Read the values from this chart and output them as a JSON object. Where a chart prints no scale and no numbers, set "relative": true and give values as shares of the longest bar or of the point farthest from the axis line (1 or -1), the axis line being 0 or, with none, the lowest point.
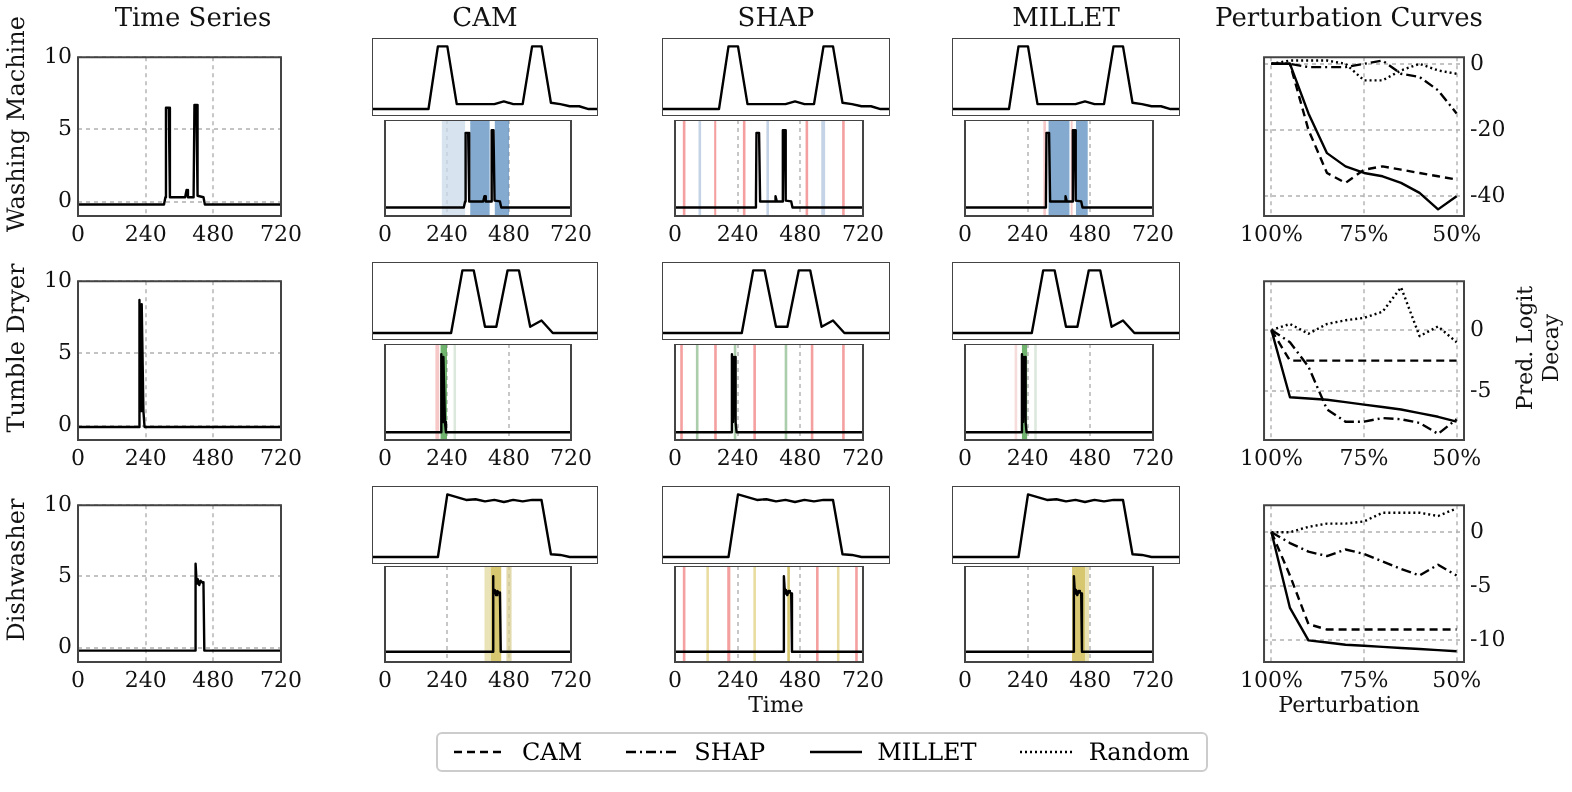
{
  "chart_data": [
    {
      "type": "line",
      "title": "Time Series",
      "ylabel": "Washing Machine",
      "x": [
        0,
        305,
        310,
        312,
        322,
        326,
        380,
        385,
        390,
        410,
        413,
        420,
        424,
        445,
        450,
        720
      ],
      "values": [
        -0.2,
        -0.2,
        0.3,
        6.5,
        6.5,
        0.3,
        0.3,
        0.8,
        0.3,
        0.3,
        6.7,
        6.7,
        0.4,
        0.3,
        -0.2,
        -0.2
      ],
      "color": "#000000",
      "xlim": [
        0,
        720
      ],
      "xticks": [
        0,
        240,
        480,
        720
      ],
      "ylim": [
        -1,
        10
      ],
      "yticks": [
        0,
        5,
        10
      ],
      "grid": true
    },
    {
      "type": "line",
      "title": "CAM",
      "relative": true,
      "categories": [
        null,
        null,
        null,
        null,
        null,
        null,
        null,
        null,
        null,
        null,
        null,
        null,
        null,
        null,
        null,
        null,
        null,
        null,
        null,
        null,
        null,
        null,
        null,
        null,
        null
      ],
      "values": [
        0.1,
        0.1,
        0.1,
        0.1,
        0.1,
        0.1,
        0.1,
        1,
        1,
        0.17,
        0.17,
        0.17,
        0.17,
        0.17,
        0.21,
        0.17,
        0.17,
        1,
        1,
        0.19,
        0.17,
        0.14,
        0.14,
        0.1,
        0.1
      ],
      "color": "#000000",
      "tick_labels": false
    },
    {
      "type": "line",
      "relative": true,
      "x": [
        0,
        305,
        310,
        312,
        322,
        326,
        380,
        385,
        390,
        410,
        413,
        420,
        424,
        445,
        450,
        720
      ],
      "values": [
        0.1,
        0.1,
        0.17,
        0.97,
        0.97,
        0.17,
        0.17,
        0.23,
        0.17,
        0.17,
        1,
        1,
        0.18,
        0.17,
        0.1,
        0.1
      ],
      "color": "#000000",
      "xlim": [
        0,
        720
      ],
      "xticks": [
        0,
        240,
        480,
        720
      ],
      "grid": "x",
      "tick_labels": "x",
      "bands": [
        {
          "axis": "x",
          "from": 220,
          "to": 310,
          "color": "#c9d9e8"
        },
        {
          "axis": "x",
          "from": 330,
          "to": 405,
          "color": "#5b8fbf"
        },
        {
          "axis": "x",
          "from": 425,
          "to": 480,
          "color": "#5b8fbf"
        }
      ]
    },
    {
      "type": "line",
      "title": "SHAP",
      "relative": true,
      "categories": [
        null,
        null,
        null,
        null,
        null,
        null,
        null,
        null,
        null,
        null,
        null,
        null,
        null,
        null,
        null,
        null,
        null,
        null,
        null,
        null,
        null,
        null,
        null,
        null,
        null
      ],
      "values": [
        0.1,
        0.1,
        0.1,
        0.1,
        0.1,
        0.1,
        0.1,
        1,
        1,
        0.17,
        0.17,
        0.17,
        0.17,
        0.17,
        0.21,
        0.17,
        0.17,
        1,
        1,
        0.19,
        0.17,
        0.14,
        0.14,
        0.1,
        0.1
      ],
      "color": "#000000",
      "tick_labels": false
    },
    {
      "type": "line",
      "relative": true,
      "x": [
        0,
        305,
        310,
        312,
        322,
        326,
        380,
        385,
        390,
        410,
        413,
        420,
        424,
        445,
        450,
        720
      ],
      "values": [
        0.1,
        0.1,
        0.17,
        0.97,
        0.97,
        0.17,
        0.17,
        0.23,
        0.17,
        0.17,
        1,
        1,
        0.18,
        0.17,
        0.1,
        0.1
      ],
      "color": "#000000",
      "xlim": [
        0,
        720
      ],
      "xticks": [
        0,
        240,
        480,
        720
      ],
      "grid": "x",
      "tick_labels": "x",
      "bands": [
        {
          "axis": "x",
          "from": 30,
          "to": 40,
          "color": "#f08080"
        },
        {
          "axis": "x",
          "from": 90,
          "to": 100,
          "color": "#b0c4de"
        },
        {
          "axis": "x",
          "from": 150,
          "to": 158,
          "color": "#f08080"
        },
        {
          "axis": "x",
          "from": 260,
          "to": 270,
          "color": "#f08080"
        },
        {
          "axis": "x",
          "from": 350,
          "to": 360,
          "color": "#b0c4de"
        },
        {
          "axis": "x",
          "from": 500,
          "to": 510,
          "color": "#f08080"
        },
        {
          "axis": "x",
          "from": 560,
          "to": 575,
          "color": "#b0c4de"
        },
        {
          "axis": "x",
          "from": 640,
          "to": 650,
          "color": "#f08080"
        }
      ]
    },
    {
      "type": "line",
      "title": "MILLET",
      "relative": true,
      "categories": [
        null,
        null,
        null,
        null,
        null,
        null,
        null,
        null,
        null,
        null,
        null,
        null,
        null,
        null,
        null,
        null,
        null,
        null,
        null,
        null,
        null,
        null,
        null,
        null,
        null
      ],
      "values": [
        0.1,
        0.1,
        0.1,
        0.1,
        0.1,
        0.1,
        0.1,
        1,
        1,
        0.17,
        0.17,
        0.17,
        0.17,
        0.17,
        0.21,
        0.17,
        0.17,
        1,
        1,
        0.19,
        0.17,
        0.14,
        0.14,
        0.1,
        0.1
      ],
      "color": "#000000",
      "tick_labels": false
    },
    {
      "type": "line",
      "relative": true,
      "x": [
        0,
        305,
        310,
        312,
        322,
        326,
        380,
        385,
        390,
        410,
        413,
        420,
        424,
        445,
        450,
        720
      ],
      "values": [
        0.1,
        0.1,
        0.17,
        0.97,
        0.97,
        0.17,
        0.17,
        0.23,
        0.17,
        0.17,
        1,
        1,
        0.18,
        0.17,
        0.1,
        0.1
      ],
      "color": "#000000",
      "xlim": [
        0,
        720
      ],
      "xticks": [
        0,
        240,
        480,
        720
      ],
      "grid": "x",
      "tick_labels": "x",
      "bands": [
        {
          "axis": "x",
          "from": 300,
          "to": 310,
          "color": "#f4b6b6"
        },
        {
          "axis": "x",
          "from": 320,
          "to": 400,
          "color": "#5b8fbf"
        },
        {
          "axis": "x",
          "from": 405,
          "to": 412,
          "color": "#f4b6b6"
        },
        {
          "axis": "x",
          "from": 425,
          "to": 470,
          "color": "#5b8fbf"
        }
      ]
    },
    {
      "type": "line",
      "title": "Perturbation Curves",
      "x": [
        100,
        95,
        90,
        85,
        80,
        75,
        70,
        65,
        60,
        55,
        50
      ],
      "xlim": [
        102,
        48
      ],
      "xticks": [
        {
          "value": 100,
          "label": "100%"
        },
        {
          "value": 75,
          "label": "75%"
        },
        {
          "value": 50,
          "label": "50%"
        }
      ],
      "y2lim": [
        -46,
        2
      ],
      "y2ticks": [
        0,
        -20,
        -40
      ],
      "grid": true,
      "series": [
        {
          "color": "#000000",
          "line_style": "dashed",
          "axis": "y2",
          "values": [
            0,
            0,
            -20,
            -33,
            -36,
            -32,
            -31,
            -32,
            -33,
            -34,
            -35
          ]
        },
        {
          "color": "#000000",
          "line_style": "dashdot",
          "axis": "y2",
          "values": [
            0,
            0,
            -1,
            -1,
            -1,
            0,
            1,
            -3,
            -4,
            -8,
            -15
          ]
        },
        {
          "color": "#000000",
          "line_style": "solid",
          "axis": "y2",
          "values": [
            0,
            0,
            -15,
            -27,
            -31,
            -33,
            -34,
            -36,
            -39,
            -44,
            -40
          ]
        },
        {
          "color": "#000000",
          "line_style": "dotted",
          "axis": "y2",
          "values": [
            0,
            1,
            1,
            1,
            0,
            -5,
            -5,
            -2,
            0,
            -2,
            -3
          ]
        }
      ]
    },
    {
      "type": "line",
      "ylabel": "Tumble Dryer",
      "x": [
        0,
        215,
        218,
        222,
        226,
        232,
        236,
        720
      ],
      "values": [
        -0.1,
        -0.1,
        8.7,
        1,
        8.4,
        1,
        -0.1,
        -0.1
      ],
      "color": "#000000",
      "xlim": [
        0,
        720
      ],
      "xticks": [
        0,
        240,
        480,
        720
      ],
      "ylim": [
        -1,
        10
      ],
      "yticks": [
        0,
        5,
        10
      ],
      "grid": true
    },
    {
      "type": "line",
      "relative": true,
      "categories": [
        null,
        null,
        null,
        null,
        null,
        null,
        null,
        null,
        null,
        null,
        null,
        null,
        null,
        null,
        null,
        null,
        null,
        null,
        null,
        null,
        null
      ],
      "values": [
        0.1,
        0.1,
        0.1,
        0.1,
        0.1,
        0.1,
        0.1,
        0.1,
        1,
        1,
        0.19,
        0.19,
        1,
        1,
        0.19,
        0.28,
        0.1,
        0.1,
        0.1,
        0.1,
        0.1
      ],
      "color": "#000000",
      "tick_labels": false
    },
    {
      "type": "line",
      "relative": true,
      "x": [
        0,
        215,
        218,
        222,
        226,
        232,
        236,
        720
      ],
      "values": [
        0.09,
        0.09,
        1,
        0.21,
        0.97,
        0.21,
        0.09,
        0.09
      ],
      "color": "#000000",
      "xlim": [
        0,
        720
      ],
      "xticks": [
        0,
        240,
        480,
        720
      ],
      "grid": "x",
      "tick_labels": "x",
      "bands": [
        {
          "axis": "x",
          "from": 195,
          "to": 210,
          "color": "#f4b6b6"
        },
        {
          "axis": "x",
          "from": 215,
          "to": 240,
          "color": "#3f9a3f"
        },
        {
          "axis": "x",
          "from": 265,
          "to": 275,
          "color": "#d0e0d0"
        }
      ]
    },
    {
      "type": "line",
      "relative": true,
      "categories": [
        null,
        null,
        null,
        null,
        null,
        null,
        null,
        null,
        null,
        null,
        null,
        null,
        null,
        null,
        null,
        null,
        null,
        null,
        null,
        null,
        null
      ],
      "values": [
        0.1,
        0.1,
        0.1,
        0.1,
        0.1,
        0.1,
        0.1,
        0.1,
        1,
        1,
        0.19,
        0.19,
        1,
        1,
        0.19,
        0.28,
        0.1,
        0.1,
        0.1,
        0.1,
        0.1
      ],
      "color": "#000000",
      "tick_labels": false
    },
    {
      "type": "line",
      "relative": true,
      "x": [
        0,
        215,
        218,
        222,
        226,
        232,
        236,
        720
      ],
      "values": [
        0.09,
        0.09,
        1,
        0.21,
        0.97,
        0.21,
        0.09,
        0.09
      ],
      "color": "#000000",
      "xlim": [
        0,
        720
      ],
      "xticks": [
        0,
        240,
        480,
        720
      ],
      "grid": "x",
      "tick_labels": "x",
      "bands": [
        {
          "axis": "x",
          "from": 20,
          "to": 30,
          "color": "#f08080"
        },
        {
          "axis": "x",
          "from": 80,
          "to": 90,
          "color": "#8fbc8f"
        },
        {
          "axis": "x",
          "from": 150,
          "to": 160,
          "color": "#f08080"
        },
        {
          "axis": "x",
          "from": 225,
          "to": 235,
          "color": "#8fbc8f"
        },
        {
          "axis": "x",
          "from": 300,
          "to": 310,
          "color": "#f08080"
        },
        {
          "axis": "x",
          "from": 420,
          "to": 430,
          "color": "#8fbc8f"
        },
        {
          "axis": "x",
          "from": 520,
          "to": 530,
          "color": "#f08080"
        },
        {
          "axis": "x",
          "from": 640,
          "to": 650,
          "color": "#f08080"
        }
      ]
    },
    {
      "type": "line",
      "relative": true,
      "categories": [
        null,
        null,
        null,
        null,
        null,
        null,
        null,
        null,
        null,
        null,
        null,
        null,
        null,
        null,
        null,
        null,
        null,
        null,
        null,
        null,
        null
      ],
      "values": [
        0.1,
        0.1,
        0.1,
        0.1,
        0.1,
        0.1,
        0.1,
        0.1,
        1,
        1,
        0.19,
        0.19,
        1,
        1,
        0.19,
        0.28,
        0.1,
        0.1,
        0.1,
        0.1,
        0.1
      ],
      "color": "#000000",
      "tick_labels": false
    },
    {
      "type": "line",
      "relative": true,
      "x": [
        0,
        215,
        218,
        222,
        226,
        232,
        236,
        720
      ],
      "values": [
        0.09,
        0.09,
        1,
        0.21,
        0.97,
        0.21,
        0.09,
        0.09
      ],
      "color": "#000000",
      "xlim": [
        0,
        720
      ],
      "xticks": [
        0,
        240,
        480,
        720
      ],
      "grid": "x",
      "tick_labels": "x",
      "bands": [
        {
          "axis": "x",
          "from": 190,
          "to": 200,
          "color": "#f4d0d0"
        },
        {
          "axis": "x",
          "from": 218,
          "to": 238,
          "color": "#3f9a3f"
        },
        {
          "axis": "x",
          "from": 265,
          "to": 275,
          "color": "#d0e0d0"
        }
      ]
    },
    {
      "type": "line",
      "y2label": "Pred. Logit Decay",
      "x": [
        100,
        95,
        90,
        85,
        80,
        75,
        70,
        65,
        60,
        55,
        50
      ],
      "xlim": [
        102,
        48
      ],
      "xticks": [
        {
          "value": 100,
          "label": "100%"
        },
        {
          "value": 75,
          "label": "75%"
        },
        {
          "value": 50,
          "label": "50%"
        }
      ],
      "y2lim": [
        -9,
        4
      ],
      "y2ticks": [
        0,
        -5
      ],
      "grid": true,
      "series": [
        {
          "color": "#000000",
          "line_style": "dashed",
          "axis": "y2",
          "values": [
            0,
            -2.5,
            -2.5,
            -2.5,
            -2.5,
            -2.5,
            -2.5,
            -2.5,
            -2.5,
            -2.5,
            -2.5
          ]
        },
        {
          "color": "#000000",
          "line_style": "dashdot",
          "axis": "y2",
          "values": [
            0,
            -1,
            -3,
            -6.5,
            -7.5,
            -7.5,
            -7.2,
            -7.3,
            -7.6,
            -8.5,
            -7.3
          ]
        },
        {
          "color": "#000000",
          "line_style": "solid",
          "axis": "y2",
          "values": [
            0,
            -5.5,
            -5.6,
            -5.7,
            -5.9,
            -6.1,
            -6.3,
            -6.5,
            -6.8,
            -7.1,
            -7.5
          ]
        },
        {
          "color": "#000000",
          "line_style": "dotted",
          "axis": "y2",
          "values": [
            0,
            0.5,
            -0.3,
            0.5,
            0.8,
            1,
            1.5,
            3.5,
            -0.5,
            0.3,
            -1
          ]
        }
      ]
    },
    {
      "type": "line",
      "ylabel": "Dishwasher",
      "x": [
        0,
        415,
        417,
        421,
        425,
        430,
        435,
        440,
        445,
        448,
        720
      ],
      "values": [
        -0.2,
        -0.2,
        5.9,
        4.5,
        4.8,
        4.4,
        4.7,
        4.6,
        4.5,
        -0.2,
        -0.2
      ],
      "color": "#000000",
      "xlim": [
        0,
        720
      ],
      "xticks": [
        0,
        240,
        480,
        720
      ],
      "ylim": [
        -1,
        10
      ],
      "yticks": [
        0,
        5,
        10
      ],
      "grid": true
    },
    {
      "type": "line",
      "relative": true,
      "categories": [
        null,
        null,
        null,
        null,
        null,
        null,
        null,
        null,
        null,
        null,
        null,
        null,
        null,
        null,
        null,
        null,
        null,
        null,
        null,
        null,
        null,
        null,
        null,
        null,
        null
      ],
      "values": [
        0.1,
        0.1,
        0.1,
        0.1,
        0.1,
        0.1,
        0.1,
        0.1,
        1,
        0.96,
        0.92,
        0.93,
        0.9,
        0.92,
        0.89,
        0.92,
        0.9,
        0.92,
        0.92,
        0.14,
        0.13,
        0.1,
        0.1,
        0.1,
        0.1
      ],
      "color": "#000000",
      "tick_labels": false
    },
    {
      "type": "line",
      "relative": true,
      "x": [
        0,
        415,
        417,
        421,
        425,
        430,
        435,
        440,
        445,
        448,
        720
      ],
      "values": [
        0.12,
        0.12,
        1,
        0.8,
        0.84,
        0.78,
        0.83,
        0.81,
        0.8,
        0.12,
        0.12
      ],
      "color": "#000000",
      "xlim": [
        0,
        720
      ],
      "xticks": [
        0,
        240,
        480,
        720
      ],
      "grid": "x",
      "tick_labels": "x",
      "bands": [
        {
          "axis": "x",
          "from": 385,
          "to": 410,
          "color": "#e3d9a0"
        },
        {
          "axis": "x",
          "from": 410,
          "to": 450,
          "color": "#c8b440"
        },
        {
          "axis": "x",
          "from": 470,
          "to": 490,
          "color": "#d8ce90"
        }
      ]
    },
    {
      "type": "line",
      "relative": true,
      "categories": [
        null,
        null,
        null,
        null,
        null,
        null,
        null,
        null,
        null,
        null,
        null,
        null,
        null,
        null,
        null,
        null,
        null,
        null,
        null,
        null,
        null,
        null,
        null,
        null,
        null
      ],
      "values": [
        0.1,
        0.1,
        0.1,
        0.1,
        0.1,
        0.1,
        0.1,
        0.1,
        1,
        0.96,
        0.92,
        0.93,
        0.9,
        0.92,
        0.89,
        0.92,
        0.9,
        0.92,
        0.92,
        0.14,
        0.13,
        0.1,
        0.1,
        0.1,
        0.1
      ],
      "color": "#000000",
      "tick_labels": false
    },
    {
      "type": "line",
      "relative": true,
      "xlabel": "Time",
      "x": [
        0,
        415,
        417,
        421,
        425,
        430,
        435,
        440,
        445,
        448,
        720
      ],
      "values": [
        0.12,
        0.12,
        1,
        0.8,
        0.84,
        0.78,
        0.83,
        0.81,
        0.8,
        0.12,
        0.12
      ],
      "color": "#000000",
      "xlim": [
        0,
        720
      ],
      "xticks": [
        0,
        240,
        480,
        720
      ],
      "grid": "x",
      "tick_labels": "x",
      "bands": [
        {
          "axis": "x",
          "from": 30,
          "to": 40,
          "color": "#f08080"
        },
        {
          "axis": "x",
          "from": 120,
          "to": 130,
          "color": "#e0d080"
        },
        {
          "axis": "x",
          "from": 200,
          "to": 212,
          "color": "#f08080"
        },
        {
          "axis": "x",
          "from": 300,
          "to": 310,
          "color": "#e0d080"
        },
        {
          "axis": "x",
          "from": 430,
          "to": 440,
          "color": "#c8b440"
        },
        {
          "axis": "x",
          "from": 540,
          "to": 550,
          "color": "#f08080"
        },
        {
          "axis": "x",
          "from": 620,
          "to": 630,
          "color": "#e0d080"
        },
        {
          "axis": "x",
          "from": 690,
          "to": 700,
          "color": "#f08080"
        }
      ]
    },
    {
      "type": "line",
      "relative": true,
      "categories": [
        null,
        null,
        null,
        null,
        null,
        null,
        null,
        null,
        null,
        null,
        null,
        null,
        null,
        null,
        null,
        null,
        null,
        null,
        null,
        null,
        null,
        null,
        null,
        null,
        null
      ],
      "values": [
        0.1,
        0.1,
        0.1,
        0.1,
        0.1,
        0.1,
        0.1,
        0.1,
        1,
        0.96,
        0.92,
        0.93,
        0.9,
        0.92,
        0.89,
        0.92,
        0.9,
        0.92,
        0.92,
        0.14,
        0.13,
        0.1,
        0.1,
        0.1,
        0.1
      ],
      "color": "#000000",
      "tick_labels": false
    },
    {
      "type": "line",
      "relative": true,
      "x": [
        0,
        415,
        417,
        421,
        425,
        430,
        435,
        440,
        445,
        448,
        720
      ],
      "values": [
        0.12,
        0.12,
        1,
        0.8,
        0.84,
        0.78,
        0.83,
        0.81,
        0.8,
        0.12,
        0.12
      ],
      "color": "#000000",
      "xlim": [
        0,
        720
      ],
      "xticks": [
        0,
        240,
        480,
        720
      ],
      "grid": "x",
      "tick_labels": "x",
      "bands": [
        {
          "axis": "x",
          "from": 410,
          "to": 460,
          "color": "#c8b440"
        },
        {
          "axis": "x",
          "from": 460,
          "to": 475,
          "color": "#e3d9a0"
        }
      ]
    },
    {
      "type": "line",
      "xlabel": "Perturbation",
      "legend": "bottom",
      "x": [
        100,
        95,
        90,
        85,
        80,
        75,
        70,
        65,
        60,
        55,
        50
      ],
      "xlim": [
        102,
        48
      ],
      "xticks": [
        {
          "value": 100,
          "label": "100%"
        },
        {
          "value": 75,
          "label": "75%"
        },
        {
          "value": 50,
          "label": "50%"
        }
      ],
      "y2lim": [
        -12,
        2.5
      ],
      "y2ticks": [
        0,
        -5,
        -10
      ],
      "grid": true,
      "series": [
        {
          "name": "CAM",
          "color": "#000000",
          "line_style": "dashed",
          "axis": "y2",
          "values": [
            0,
            -4,
            -8.5,
            -9,
            -9,
            -9,
            -9,
            -9,
            -9,
            -9,
            -9
          ]
        },
        {
          "name": "SHAP",
          "color": "#000000",
          "line_style": "dashdot",
          "axis": "y2",
          "values": [
            0,
            -1,
            -1.8,
            -2.2,
            -1.6,
            -2,
            -2.7,
            -3.4,
            -4,
            -3,
            -4
          ]
        },
        {
          "name": "MILLET",
          "color": "#000000",
          "line_style": "solid",
          "axis": "y2",
          "values": [
            0,
            -7,
            -10,
            -10.2,
            -10.4,
            -10.5,
            -10.6,
            -10.7,
            -10.8,
            -10.9,
            -11
          ]
        },
        {
          "name": "Random",
          "color": "#000000",
          "line_style": "dotted",
          "axis": "y2",
          "values": [
            0,
            0,
            0.5,
            0.8,
            0.8,
            1,
            1.8,
            1.8,
            1.8,
            1.5,
            2.2
          ]
        }
      ]
    }
  ]
}
